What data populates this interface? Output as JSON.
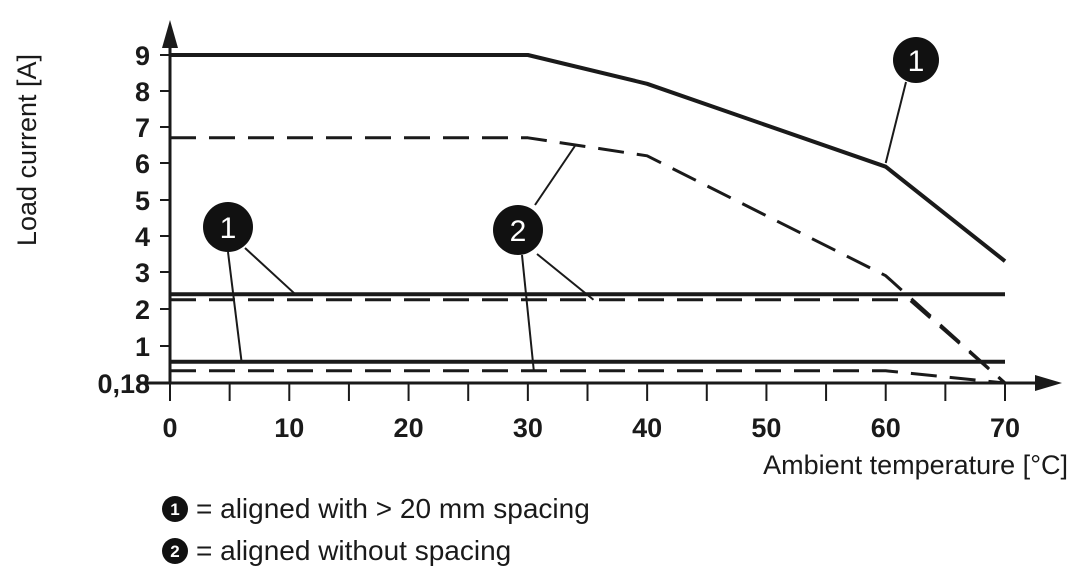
{
  "chart_data": {
    "type": "line",
    "xlabel": "Ambient temperature [°C]",
    "ylabel": "Load current [A]",
    "x_ticks": [
      "0",
      "10",
      "20",
      "30",
      "40",
      "50",
      "60",
      "70"
    ],
    "y_ticks": [
      {
        "label": "0,18",
        "value": 0.18
      },
      {
        "label": "1",
        "value": 1
      },
      {
        "label": "2",
        "value": 2
      },
      {
        "label": "3",
        "value": 3
      },
      {
        "label": "4",
        "value": 4
      },
      {
        "label": "5",
        "value": 5
      },
      {
        "label": "6",
        "value": 6
      },
      {
        "label": "7",
        "value": 7
      },
      {
        "label": "8",
        "value": 8
      },
      {
        "label": "9",
        "value": 9
      }
    ],
    "xlim": [
      0,
      70
    ],
    "ylim": [
      0.18,
      9
    ],
    "grid": false,
    "series": [
      {
        "key": "1",
        "style": "solid",
        "x": [
          0,
          30,
          40,
          60,
          70
        ],
        "y": [
          9,
          9,
          8.2,
          5.9,
          3.3
        ]
      },
      {
        "key": "2",
        "style": "dashed",
        "x": [
          0,
          30,
          40,
          60,
          70
        ],
        "y": [
          6.7,
          6.7,
          6.2,
          2.9,
          0.18
        ]
      },
      {
        "key": "1",
        "style": "solid",
        "x": [
          0,
          70
        ],
        "y": [
          2.4,
          2.4
        ]
      },
      {
        "key": "2",
        "style": "dashed",
        "x": [
          0,
          62,
          70
        ],
        "y": [
          2.25,
          2.25,
          0.18
        ]
      },
      {
        "key": "1",
        "style": "solid",
        "x": [
          0,
          70
        ],
        "y": [
          0.65,
          0.65
        ]
      },
      {
        "key": "2",
        "style": "dashed",
        "x": [
          0,
          60,
          70
        ],
        "y": [
          0.45,
          0.45,
          0.18
        ]
      }
    ],
    "callouts": [
      {
        "label": "1",
        "x": 60,
        "y": 6
      },
      {
        "label": "2",
        "x": 34,
        "y": 6.5
      },
      {
        "label": "1",
        "x": 10.5,
        "y": 2.4
      },
      {
        "label": "2",
        "x": 35.5,
        "y": 2.25
      },
      {
        "label": "1",
        "x": 6,
        "y": 0.65
      },
      {
        "label": "2",
        "x": 30.5,
        "y": 0.45
      }
    ]
  },
  "legend": {
    "items": [
      {
        "key": "1",
        "text": "= aligned with > 20 mm spacing"
      },
      {
        "key": "2",
        "text": "= aligned without spacing"
      }
    ]
  }
}
